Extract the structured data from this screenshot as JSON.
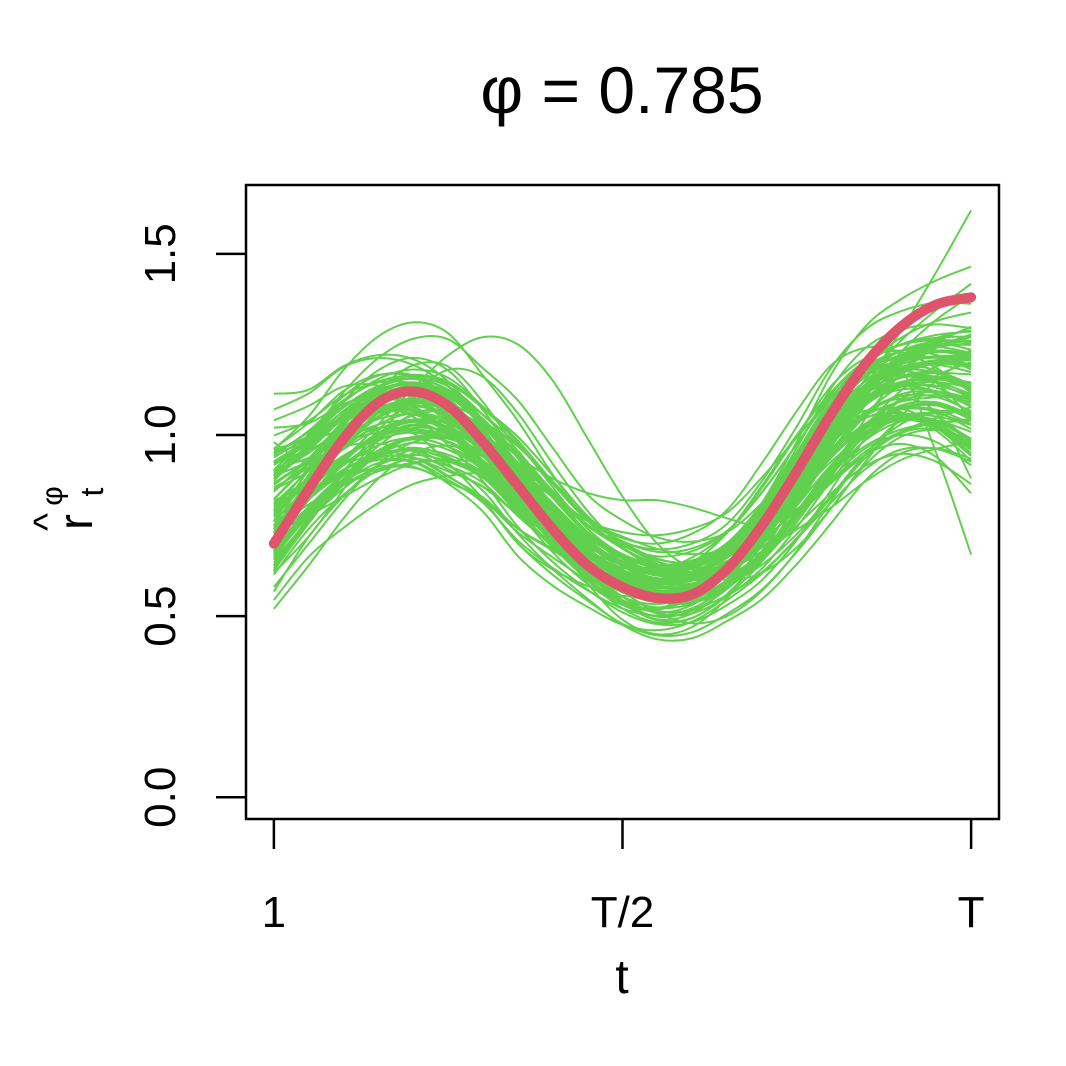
{
  "chart_data": {
    "type": "line",
    "title": "φ = 0.785",
    "xlabel": "t",
    "ylabel": {
      "symbol": "r",
      "hat": "^",
      "subscript": "t",
      "superscript": "φ"
    },
    "x_ticks": [
      {
        "label": "1",
        "x": 0.0
      },
      {
        "label": "T/2",
        "x": 0.5
      },
      {
        "label": "T",
        "x": 1.0
      }
    ],
    "y_ticks": [
      {
        "label": "0.0",
        "y": 0.0
      },
      {
        "label": "0.5",
        "y": 0.5
      },
      {
        "label": "1.0",
        "y": 1.0
      },
      {
        "label": "1.5",
        "y": 1.5
      }
    ],
    "xlim": [
      -0.04,
      1.04
    ],
    "ylim": [
      -0.06,
      1.69
    ],
    "grid": false,
    "legend": "none",
    "colors": {
      "replicates": "#61D04F",
      "mean": "#DF536B"
    },
    "series": [
      {
        "role": "mean",
        "x": [
          0.0,
          0.05,
          0.1,
          0.15,
          0.2,
          0.25,
          0.3,
          0.35,
          0.4,
          0.45,
          0.5,
          0.55,
          0.6,
          0.65,
          0.7,
          0.75,
          0.8,
          0.85,
          0.9,
          0.95,
          1.0
        ],
        "values": [
          0.7,
          0.85,
          0.99,
          1.09,
          1.12,
          1.08,
          0.98,
          0.86,
          0.74,
          0.64,
          0.58,
          0.55,
          0.56,
          0.63,
          0.75,
          0.9,
          1.06,
          1.2,
          1.3,
          1.36,
          1.38
        ]
      }
    ],
    "replicates": {
      "count": 100,
      "x": [
        0.0,
        0.05,
        0.1,
        0.15,
        0.2,
        0.25,
        0.3,
        0.35,
        0.4,
        0.45,
        0.5,
        0.55,
        0.6,
        0.65,
        0.7,
        0.75,
        0.8,
        0.85,
        0.9,
        0.95,
        1.0
      ],
      "central": [
        0.8,
        0.89,
        0.98,
        1.04,
        1.06,
        1.03,
        0.96,
        0.86,
        0.76,
        0.67,
        0.61,
        0.58,
        0.59,
        0.64,
        0.73,
        0.85,
        0.98,
        1.08,
        1.13,
        1.14,
        1.12
      ],
      "spread": [
        0.1,
        0.08,
        0.08,
        0.08,
        0.08,
        0.08,
        0.07,
        0.07,
        0.06,
        0.05,
        0.05,
        0.05,
        0.05,
        0.05,
        0.06,
        0.07,
        0.08,
        0.08,
        0.08,
        0.09,
        0.11
      ],
      "outliers": [
        {
          "values": [
            0.9,
            0.97,
            1.05,
            1.1,
            1.08,
            1.01,
            0.93,
            0.85,
            0.76,
            0.68,
            0.61,
            0.57,
            0.56,
            0.59,
            0.67,
            0.81,
            0.98,
            1.14,
            1.29,
            1.45,
            1.62
          ]
        },
        {
          "values": [
            0.95,
            0.98,
            1.02,
            1.06,
            1.08,
            1.05,
            0.97,
            0.88,
            0.79,
            0.71,
            0.65,
            0.63,
            0.65,
            0.73,
            0.86,
            1.0,
            1.12,
            1.2,
            1.18,
            0.95,
            0.67
          ]
        },
        {
          "values": [
            0.62,
            0.72,
            0.85,
            0.99,
            1.11,
            1.18,
            1.16,
            1.06,
            0.92,
            0.79,
            0.69,
            0.63,
            0.6,
            0.61,
            0.66,
            0.76,
            0.9,
            1.05,
            1.17,
            1.24,
            1.27
          ]
        },
        {
          "values": [
            0.98,
            0.92,
            0.94,
            1.03,
            1.13,
            1.22,
            1.27,
            1.25,
            1.15,
            0.99,
            0.83,
            0.7,
            0.63,
            0.6,
            0.62,
            0.69,
            0.8,
            0.93,
            1.05,
            1.15,
            1.22
          ]
        },
        {
          "values": [
            0.85,
            0.9,
            0.98,
            1.05,
            1.09,
            1.08,
            1.02,
            0.94,
            0.88,
            0.84,
            0.82,
            0.82,
            0.8,
            0.77,
            0.75,
            0.79,
            0.9,
            1.02,
            1.1,
            1.12,
            1.1
          ]
        },
        {
          "values": [
            0.58,
            0.7,
            0.82,
            0.92,
            0.98,
            0.99,
            0.94,
            0.84,
            0.72,
            0.59,
            0.49,
            0.45,
            0.47,
            0.55,
            0.68,
            0.82,
            0.96,
            1.06,
            1.1,
            1.06,
            0.88
          ]
        },
        {
          "values": [
            0.52,
            0.64,
            0.77,
            0.88,
            0.95,
            0.97,
            0.94,
            0.86,
            0.76,
            0.66,
            0.57,
            0.51,
            0.48,
            0.5,
            0.57,
            0.68,
            0.82,
            0.95,
            1.04,
            1.05,
            0.98
          ]
        }
      ]
    }
  }
}
